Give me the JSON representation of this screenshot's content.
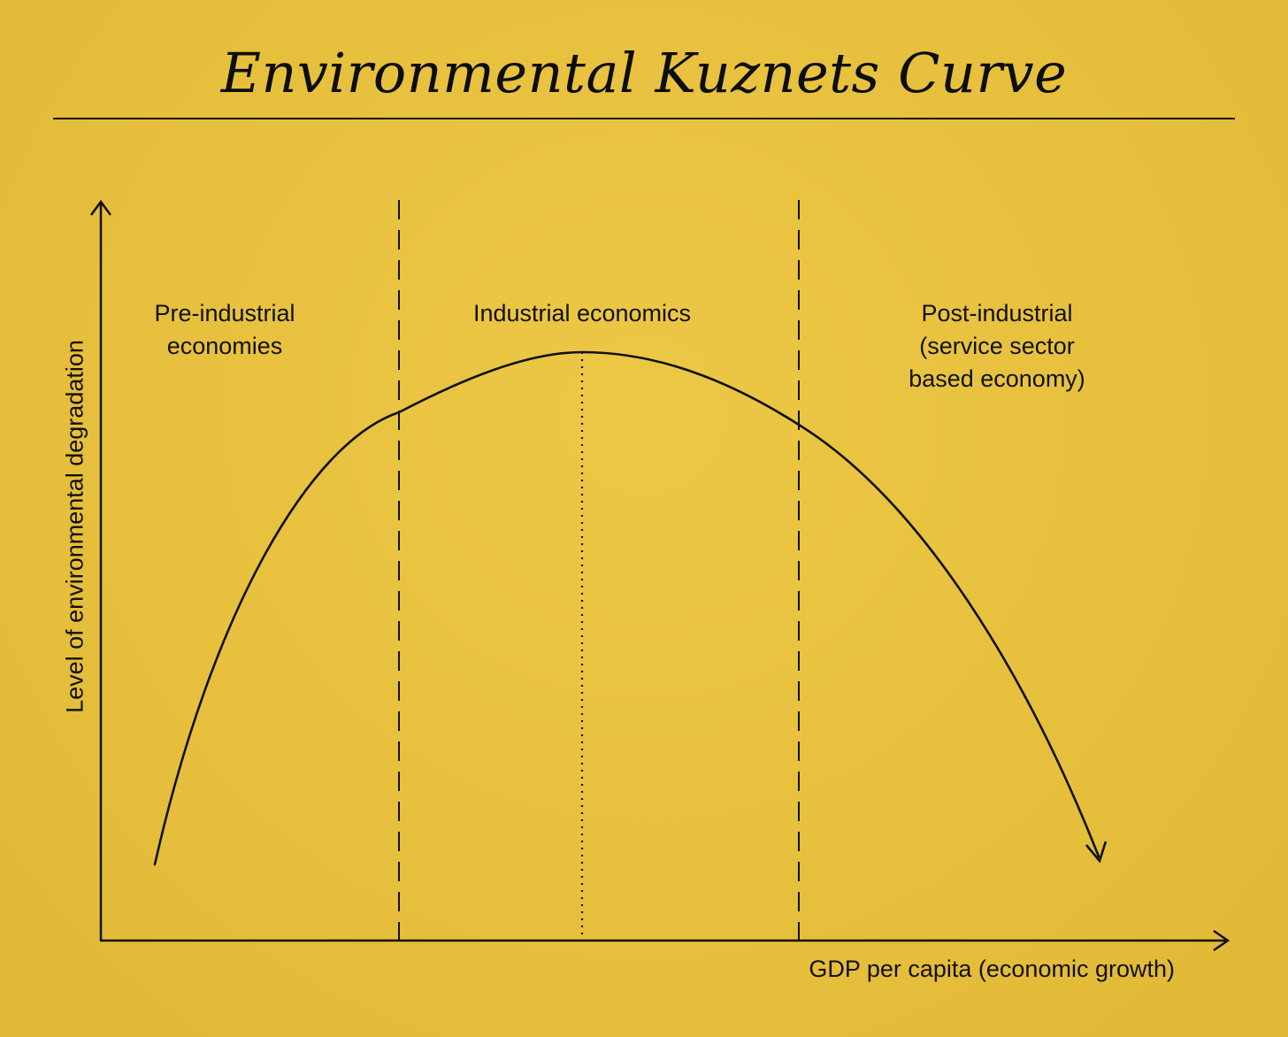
{
  "title": "Environmental Kuznets Curve",
  "axes": {
    "y_label": "Level of environmental degradation",
    "x_label": "GDP per capita (economic growth)"
  },
  "regions": [
    {
      "lines": [
        "Pre-industrial",
        "economies"
      ]
    },
    {
      "lines": [
        "Industrial economics"
      ]
    },
    {
      "lines": [
        "Post-industrial",
        "(service sector",
        "based economy)"
      ]
    }
  ],
  "colors": {
    "background": "#e8c23f",
    "ink": "#111111"
  },
  "diagram": {
    "curve_shape": "inverted-U",
    "boundary_style": "dashed",
    "peak_marker_style": "dotted"
  }
}
